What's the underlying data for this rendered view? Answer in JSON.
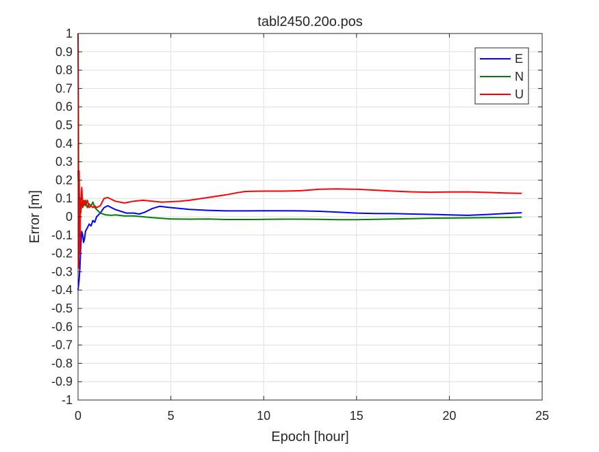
{
  "chart_data": {
    "type": "line",
    "title": "tabl2450.20o.pos",
    "xlabel": "Epoch [hour]",
    "ylabel": "Error [m]",
    "xlim": [
      0,
      25
    ],
    "ylim": [
      -1,
      1
    ],
    "xticks": [
      0,
      5,
      10,
      15,
      20,
      25
    ],
    "xtick_labels": [
      "0",
      "5",
      "10",
      "15",
      "20",
      "25"
    ],
    "yticks": [
      1,
      0.9,
      0.8,
      0.7,
      0.6,
      0.5,
      0.4,
      0.3,
      0.2,
      0.1,
      0,
      -0.1,
      -0.2,
      -0.3,
      -0.4,
      -0.5,
      -0.6,
      -0.7,
      -0.8,
      -0.9,
      -1
    ],
    "ytick_labels": [
      "1",
      "0.9",
      "0.8",
      "0.7",
      "0.6",
      "0.5",
      "0.4",
      "0.3",
      "0.2",
      "0.1",
      "0",
      "-0.1",
      "-0.2",
      "-0.3",
      "-0.4",
      "-0.5",
      "-0.6",
      "-0.7",
      "-0.8",
      "-0.9",
      "-1"
    ],
    "grid": true,
    "legend_position": "top-right",
    "series": [
      {
        "name": "E",
        "color": "#0000ff",
        "x": [
          0,
          0.05,
          0.1,
          0.15,
          0.2,
          0.25,
          0.3,
          0.35,
          0.4,
          0.5,
          0.6,
          0.7,
          0.8,
          0.9,
          1.0,
          1.2,
          1.4,
          1.6,
          1.8,
          2.0,
          2.3,
          2.6,
          3.0,
          3.3,
          3.6,
          4.0,
          4.4,
          5.0,
          6.0,
          7.0,
          8.0,
          9.0,
          10.0,
          11.0,
          12.0,
          13.0,
          14.0,
          15.0,
          16.0,
          17.0,
          18.0,
          19.0,
          20.0,
          21.0,
          22.0,
          23.0,
          23.9
        ],
        "y": [
          -0.4,
          -0.35,
          -0.28,
          -0.15,
          -0.08,
          -0.1,
          -0.14,
          -0.12,
          -0.08,
          -0.06,
          -0.04,
          -0.05,
          -0.02,
          -0.03,
          0.0,
          0.02,
          0.05,
          0.06,
          0.05,
          0.04,
          0.03,
          0.02,
          0.02,
          0.015,
          0.025,
          0.045,
          0.057,
          0.05,
          0.04,
          0.035,
          0.032,
          0.032,
          0.033,
          0.033,
          0.032,
          0.03,
          0.025,
          0.02,
          0.018,
          0.017,
          0.015,
          0.013,
          0.01,
          0.008,
          0.012,
          0.018,
          0.022
        ]
      },
      {
        "name": "N",
        "color": "#008000",
        "x": [
          0,
          0.03,
          0.06,
          0.1,
          0.15,
          0.2,
          0.3,
          0.4,
          0.5,
          0.6,
          0.7,
          0.8,
          0.9,
          1.0,
          1.2,
          1.5,
          1.8,
          2.0,
          2.5,
          3.0,
          3.5,
          4.0,
          5.0,
          6.0,
          7.0,
          8.0,
          9.0,
          10.0,
          11.0,
          12.0,
          13.0,
          14.0,
          15.0,
          16.0,
          17.0,
          18.0,
          19.0,
          20.0,
          21.0,
          22.0,
          23.0,
          23.9
        ],
        "y": [
          0.25,
          0.15,
          -0.05,
          0.1,
          0.02,
          0.08,
          0.06,
          0.09,
          0.05,
          0.07,
          0.06,
          0.08,
          0.05,
          0.04,
          0.02,
          0.01,
          0.008,
          0.01,
          0.005,
          0.005,
          0.0,
          -0.005,
          -0.012,
          -0.013,
          -0.012,
          -0.015,
          -0.015,
          -0.014,
          -0.013,
          -0.013,
          -0.014,
          -0.016,
          -0.016,
          -0.014,
          -0.012,
          -0.01,
          -0.008,
          -0.007,
          -0.006,
          -0.005,
          -0.004,
          -0.002
        ]
      },
      {
        "name": "U",
        "color": "#ff0000",
        "x": [
          0,
          0.02,
          0.04,
          0.06,
          0.08,
          0.1,
          0.13,
          0.16,
          0.2,
          0.25,
          0.3,
          0.35,
          0.4,
          0.5,
          0.6,
          0.7,
          0.8,
          0.9,
          1.0,
          1.2,
          1.4,
          1.6,
          1.8,
          2.0,
          2.5,
          3.0,
          3.5,
          4.0,
          4.5,
          5.0,
          5.5,
          6.0,
          7.0,
          8.0,
          8.5,
          9.0,
          10.0,
          11.0,
          12.0,
          13.0,
          14.0,
          15.0,
          16.0,
          17.0,
          18.0,
          19.0,
          20.0,
          21.0,
          22.0,
          23.0,
          23.9
        ],
        "y": [
          1.0,
          0.6,
          -0.28,
          0.25,
          0.0,
          -0.2,
          0.05,
          0.1,
          0.16,
          0.05,
          0.09,
          0.08,
          0.06,
          0.09,
          0.05,
          0.06,
          0.05,
          0.06,
          0.05,
          0.06,
          0.1,
          0.105,
          0.095,
          0.085,
          0.075,
          0.085,
          0.09,
          0.085,
          0.08,
          0.082,
          0.085,
          0.09,
          0.105,
          0.12,
          0.13,
          0.138,
          0.14,
          0.14,
          0.142,
          0.15,
          0.152,
          0.15,
          0.145,
          0.14,
          0.136,
          0.134,
          0.135,
          0.136,
          0.133,
          0.13,
          0.128
        ]
      }
    ]
  }
}
